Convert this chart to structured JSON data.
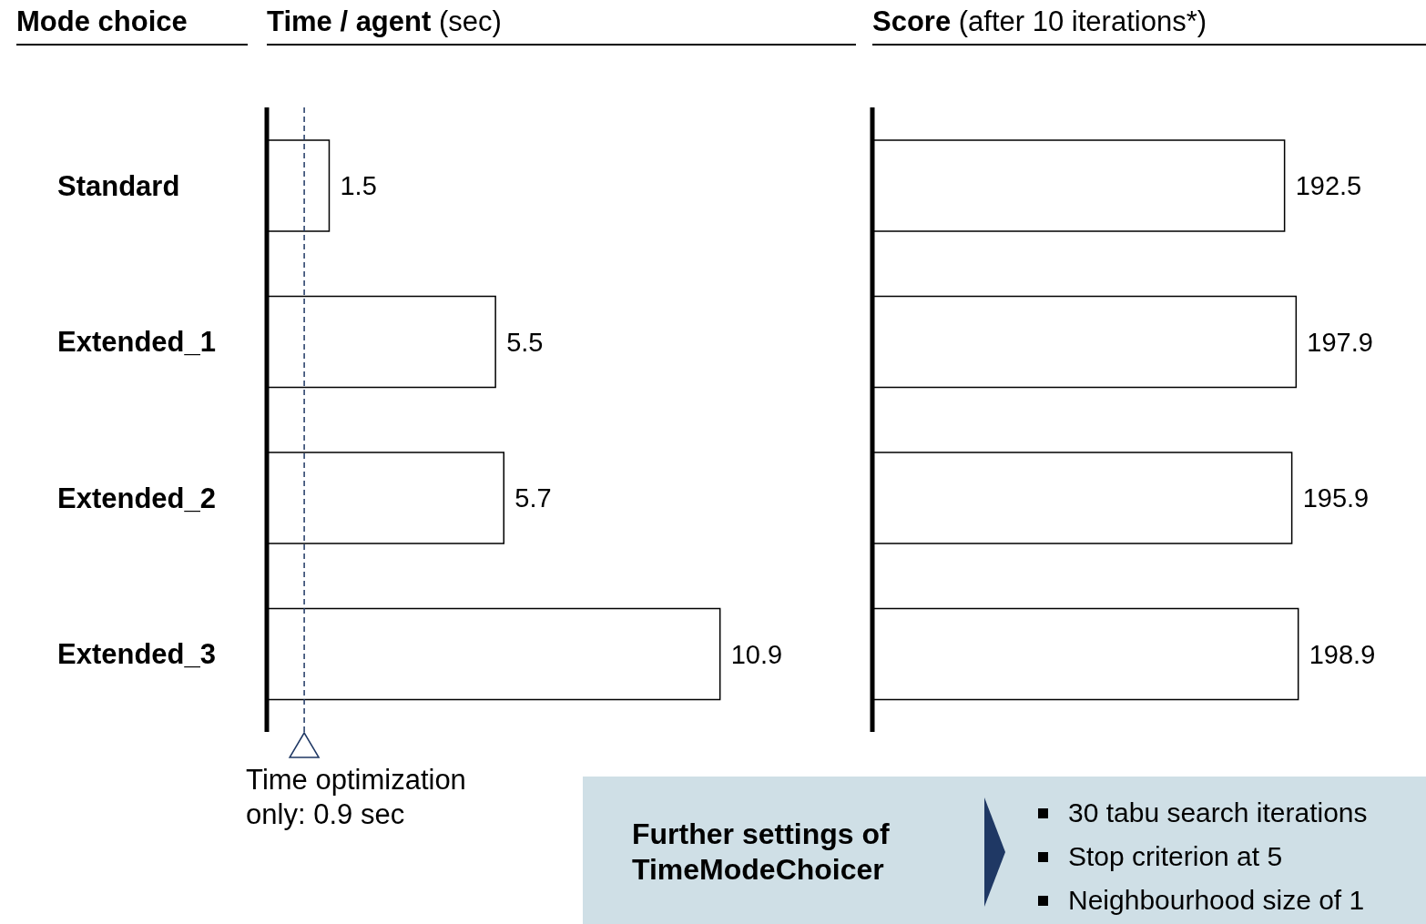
{
  "chart_data": [
    {
      "type": "bar",
      "orientation": "horizontal",
      "title": "Time / agent (sec)",
      "ylabel": "Mode choice",
      "categories": [
        "Standard",
        "Extended_1",
        "Extended_2",
        "Extended_3"
      ],
      "values": [
        1.5,
        5.5,
        5.7,
        10.9
      ],
      "color": "#ffffff",
      "data_labels": true,
      "tick_labels": "y",
      "ref_lines": [
        {
          "axis": "x",
          "value": 0.9,
          "label": "Time optimization only: 0.9 sec",
          "color": "#1f3864",
          "line_style": "dashed"
        }
      ]
    },
    {
      "type": "bar",
      "orientation": "horizontal",
      "title": "Score (after 10 iterations*)",
      "categories": [
        null,
        null,
        null,
        null
      ],
      "values": [
        192.5,
        197.9,
        195.9,
        198.9
      ],
      "color": "#ffffff",
      "data_labels": true,
      "tick_labels": false
    },
    {
      "type": "other",
      "title": "Further settings of TimeModeChoicer",
      "annotations": [
        "30 tabu search iterations",
        "Stop criterion at 5",
        "Neighbourhood size of 1"
      ]
    }
  ]
}
